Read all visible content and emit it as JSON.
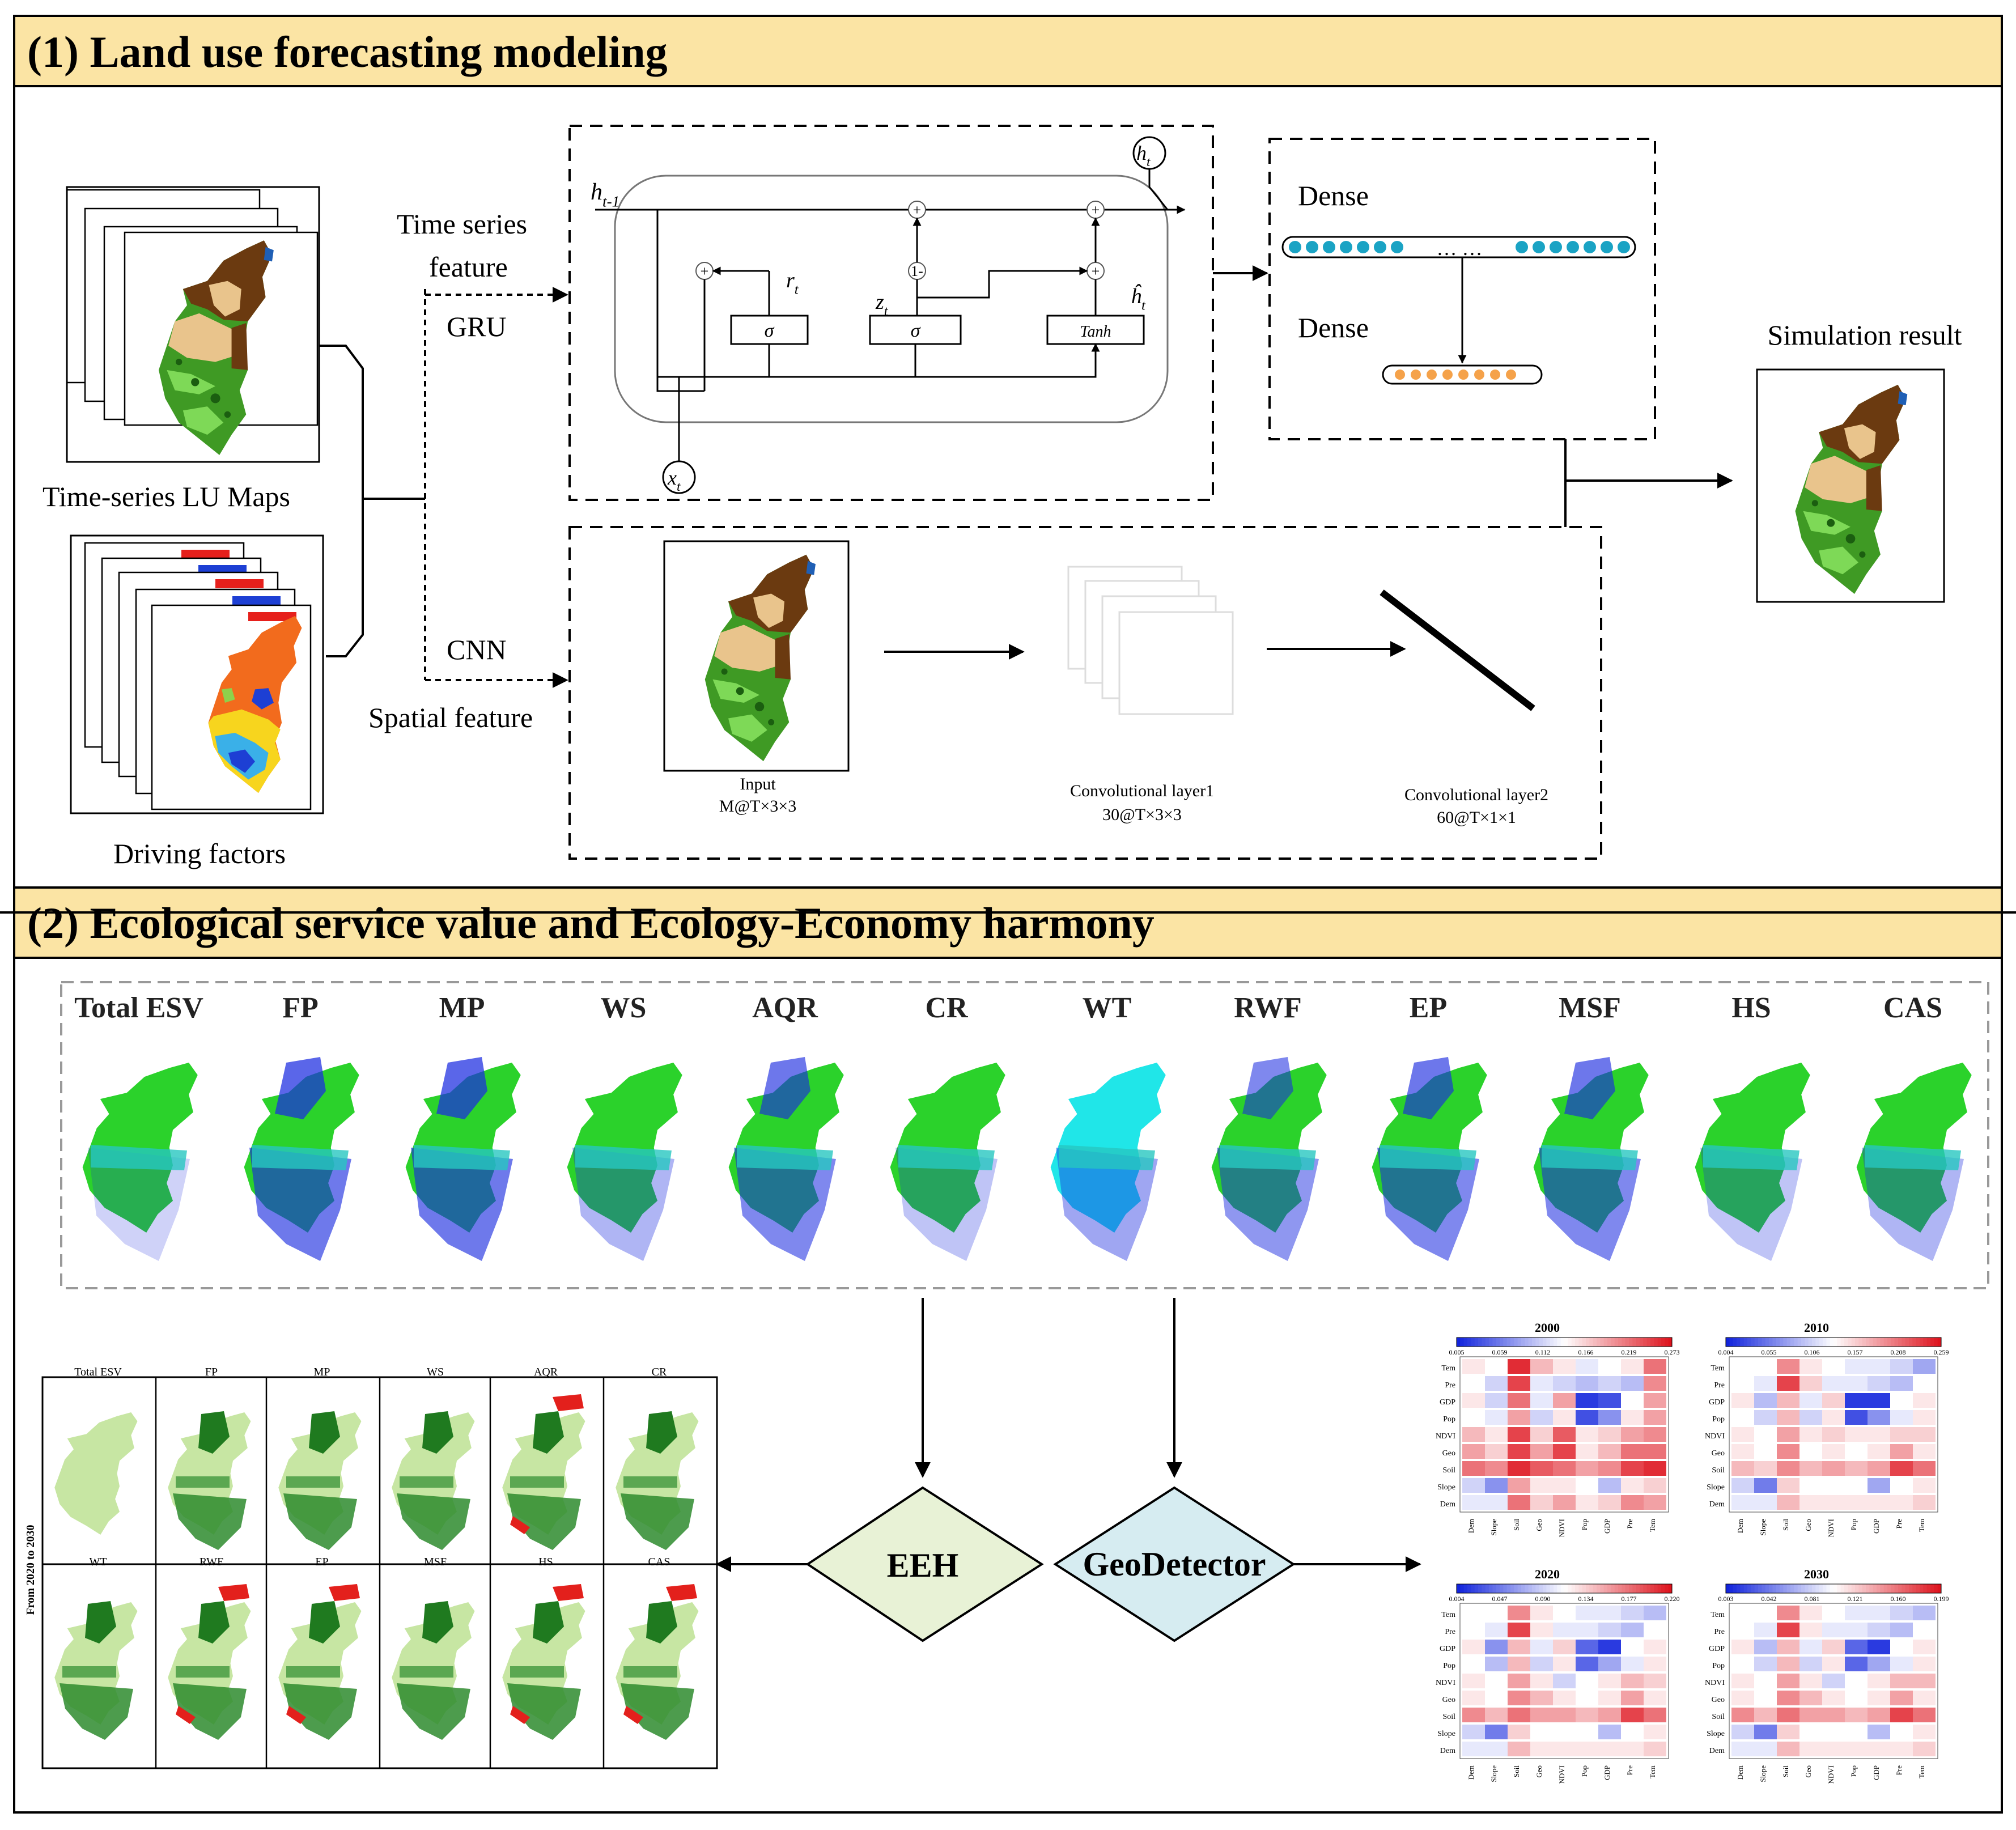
{
  "section1": {
    "title": "(1) Land use forecasting modeling"
  },
  "section2": {
    "title": "(2) Ecological service value and Ecology-Economy harmony"
  },
  "inputs": {
    "lu_maps_label": "Time-series LU Maps",
    "driving_factors_label": "Driving factors"
  },
  "branches": {
    "time_series_line1": "Time series",
    "time_series_line2": "feature",
    "gru": "GRU",
    "cnn": "CNN",
    "spatial": "Spatial feature"
  },
  "gru_cell": {
    "h_prev": "h",
    "h_prev_sub": "t-1",
    "h_out": "h",
    "h_out_sub": "t",
    "x_in": "x",
    "x_in_sub": "t",
    "r": "r",
    "r_sub": "t",
    "z": "z",
    "z_sub": "t",
    "h_hat": "ĥ",
    "h_hat_sub": "t",
    "sigma1": "σ",
    "sigma2": "σ",
    "tanh": "Tanh",
    "plus": "+",
    "one_minus": "1-"
  },
  "dense": {
    "label1": "Dense",
    "label2": "Dense",
    "ellipsis": "… …"
  },
  "cnn_block": {
    "input_line1": "Input",
    "input_line2": "M@T×3×3",
    "conv1_line1": "Convolutional layer1",
    "conv1_line2": "30@T×3×3",
    "conv2_line1": "Convolutional layer2",
    "conv2_line2": "60@T×1×1"
  },
  "simulation_label": "Simulation result",
  "esv_labels": [
    "Total ESV",
    "FP",
    "MP",
    "WS",
    "AQR",
    "CR",
    "WT",
    "RWF",
    "EP",
    "MSF",
    "HS",
    "CAS"
  ],
  "small_maps": {
    "row1": [
      "Total ESV",
      "FP",
      "MP",
      "WS",
      "AQR",
      "CR"
    ],
    "row2": [
      "WT",
      "RWF",
      "EP",
      "MSF",
      "HS",
      "CAS"
    ],
    "side_label": "From 2020 to 2030"
  },
  "decisions": {
    "eeh": "EEH",
    "geodetector": "GeoDetector"
  },
  "heatmaps": [
    {
      "year": "2000",
      "ticks": [
        "0.005",
        "0.059",
        "0.112",
        "0.166",
        "0.219",
        "0.273"
      ]
    },
    {
      "year": "2010",
      "ticks": [
        "0.004",
        "0.055",
        "0.106",
        "0.157",
        "0.208",
        "0.259"
      ]
    },
    {
      "year": "2020",
      "ticks": [
        "0.004",
        "0.047",
        "0.090",
        "0.134",
        "0.177",
        "0.220"
      ]
    },
    {
      "year": "2030",
      "ticks": [
        "0.003",
        "0.042",
        "0.081",
        "0.121",
        "0.160",
        "0.199"
      ]
    }
  ],
  "heatmap_rows": [
    "Tem",
    "Pre",
    "GDP",
    "Pop",
    "NDVI",
    "Geo",
    "Soil",
    "Slope",
    "Dem"
  ],
  "heatmap_cols": [
    "Dem",
    "Slope",
    "Soil",
    "Geo",
    "NDVI",
    "Pop",
    "GDP",
    "Pre",
    "Tem"
  ],
  "heatmap_values": [
    [
      [
        0.55,
        0.5,
        0.95,
        0.65,
        0.55,
        0.45,
        0.5,
        0.55,
        0.8
      ],
      [
        0.5,
        0.4,
        0.9,
        0.45,
        0.4,
        0.35,
        0.4,
        0.35,
        0.75
      ],
      [
        0.55,
        0.4,
        0.8,
        0.45,
        0.7,
        0.05,
        0.1,
        0.5,
        0.7
      ],
      [
        0.5,
        0.45,
        0.7,
        0.4,
        0.55,
        0.1,
        0.25,
        0.55,
        0.7
      ],
      [
        0.65,
        0.55,
        0.9,
        0.6,
        0.85,
        0.55,
        0.6,
        0.7,
        0.75
      ],
      [
        0.7,
        0.6,
        0.9,
        0.7,
        0.9,
        0.55,
        0.65,
        0.8,
        0.8
      ],
      [
        0.8,
        0.75,
        0.95,
        0.85,
        0.8,
        0.7,
        0.75,
        0.9,
        0.95
      ],
      [
        0.4,
        0.25,
        0.7,
        0.55,
        0.55,
        0.5,
        0.35,
        0.55,
        0.6
      ],
      [
        0.45,
        0.45,
        0.8,
        0.6,
        0.7,
        0.55,
        0.6,
        0.75,
        0.7
      ]
    ],
    [
      [
        0.5,
        0.5,
        0.75,
        0.55,
        0.5,
        0.45,
        0.45,
        0.4,
        0.3
      ],
      [
        0.5,
        0.45,
        0.9,
        0.6,
        0.45,
        0.45,
        0.4,
        0.35,
        0.5
      ],
      [
        0.55,
        0.35,
        0.65,
        0.45,
        0.6,
        0.05,
        0.05,
        0.5,
        0.55
      ],
      [
        0.5,
        0.4,
        0.65,
        0.4,
        0.55,
        0.1,
        0.25,
        0.45,
        0.55
      ],
      [
        0.55,
        0.5,
        0.7,
        0.55,
        0.6,
        0.55,
        0.55,
        0.6,
        0.6
      ],
      [
        0.55,
        0.5,
        0.75,
        0.5,
        0.55,
        0.5,
        0.55,
        0.7,
        0.55
      ],
      [
        0.65,
        0.6,
        0.75,
        0.65,
        0.7,
        0.65,
        0.7,
        0.9,
        0.8
      ],
      [
        0.4,
        0.2,
        0.6,
        0.5,
        0.5,
        0.5,
        0.3,
        0.5,
        0.55
      ],
      [
        0.45,
        0.45,
        0.65,
        0.55,
        0.55,
        0.55,
        0.55,
        0.55,
        0.6
      ]
    ],
    [
      [
        0.5,
        0.5,
        0.75,
        0.55,
        0.5,
        0.45,
        0.45,
        0.4,
        0.35
      ],
      [
        0.5,
        0.45,
        0.9,
        0.55,
        0.45,
        0.45,
        0.4,
        0.35,
        0.5
      ],
      [
        0.55,
        0.25,
        0.65,
        0.45,
        0.6,
        0.15,
        0.05,
        0.5,
        0.55
      ],
      [
        0.5,
        0.35,
        0.65,
        0.4,
        0.55,
        0.15,
        0.3,
        0.45,
        0.55
      ],
      [
        0.55,
        0.5,
        0.7,
        0.55,
        0.4,
        0.5,
        0.55,
        0.65,
        0.6
      ],
      [
        0.55,
        0.5,
        0.75,
        0.65,
        0.55,
        0.5,
        0.55,
        0.7,
        0.55
      ],
      [
        0.75,
        0.65,
        0.8,
        0.7,
        0.7,
        0.65,
        0.7,
        0.9,
        0.8
      ],
      [
        0.4,
        0.2,
        0.6,
        0.5,
        0.5,
        0.5,
        0.35,
        0.5,
        0.55
      ],
      [
        0.45,
        0.45,
        0.65,
        0.55,
        0.55,
        0.55,
        0.55,
        0.55,
        0.6
      ]
    ],
    [
      [
        0.5,
        0.5,
        0.75,
        0.55,
        0.5,
        0.45,
        0.45,
        0.4,
        0.35
      ],
      [
        0.5,
        0.45,
        0.9,
        0.55,
        0.45,
        0.45,
        0.4,
        0.35,
        0.5
      ],
      [
        0.55,
        0.35,
        0.65,
        0.45,
        0.6,
        0.15,
        0.05,
        0.5,
        0.55
      ],
      [
        0.5,
        0.4,
        0.65,
        0.4,
        0.55,
        0.15,
        0.3,
        0.45,
        0.55
      ],
      [
        0.55,
        0.5,
        0.7,
        0.55,
        0.4,
        0.5,
        0.55,
        0.65,
        0.65
      ],
      [
        0.55,
        0.5,
        0.75,
        0.65,
        0.55,
        0.5,
        0.55,
        0.7,
        0.55
      ],
      [
        0.75,
        0.65,
        0.8,
        0.7,
        0.7,
        0.65,
        0.7,
        0.9,
        0.8
      ],
      [
        0.4,
        0.2,
        0.6,
        0.5,
        0.5,
        0.5,
        0.35,
        0.5,
        0.55
      ],
      [
        0.45,
        0.45,
        0.65,
        0.55,
        0.55,
        0.55,
        0.55,
        0.55,
        0.6
      ]
    ]
  ],
  "colors": {
    "header_bg": "#fbe4a4",
    "eeh_fill": "#e8f2d6",
    "geodetector_fill": "#d6ecf1",
    "dense_top_dot": "#1aa3c4",
    "dense_bottom_dot": "#f5a24a",
    "lu_brown": "#6b3a10",
    "lu_tan": "#e9c48c",
    "lu_green": "#3f9a24",
    "lu_light_green": "#7ed957",
    "esv_green": "#2bd22b",
    "esv_blue": "#1a2be0",
    "esv_cyan": "#20e6e8"
  }
}
